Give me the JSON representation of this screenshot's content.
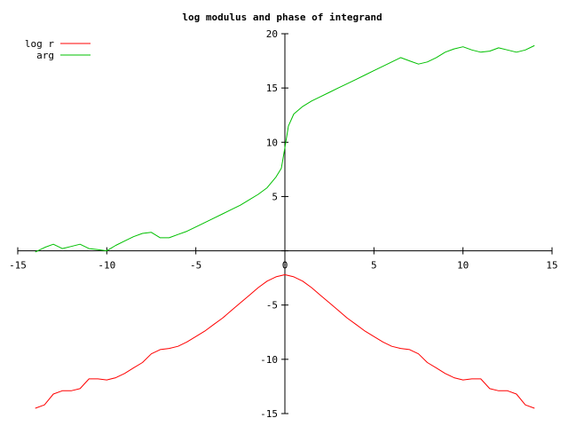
{
  "chart_data": {
    "type": "line",
    "title": "log modulus and phase of integrand",
    "xlabel": "",
    "ylabel": "",
    "xlim": [
      -15,
      15
    ],
    "ylim": [
      -15,
      20
    ],
    "x_ticks": [
      -15,
      -10,
      -5,
      0,
      5,
      10,
      15
    ],
    "y_ticks": [
      -15,
      -10,
      -5,
      0,
      5,
      10,
      15,
      20
    ],
    "x_tick_labels": [
      "-15",
      "-10",
      "-5",
      "0",
      "5",
      "10",
      "15"
    ],
    "y_tick_labels": [
      "-15",
      "-10",
      "-5",
      "0",
      "5",
      "10",
      "15",
      "20"
    ],
    "grid": false,
    "legend_position": "top-left",
    "series": [
      {
        "name": "log r",
        "color": "#ff0000",
        "x": [
          -14,
          -13.5,
          -13,
          -12.5,
          -12,
          -11.5,
          -11,
          -10.5,
          -10,
          -9.5,
          -9,
          -8.5,
          -8,
          -7.5,
          -7,
          -6.5,
          -6,
          -5.5,
          -5,
          -4.5,
          -4,
          -3.5,
          -3,
          -2.5,
          -2,
          -1.5,
          -1,
          -0.5,
          0,
          0.5,
          1,
          1.5,
          2,
          2.5,
          3,
          3.5,
          4,
          4.5,
          5,
          5.5,
          6,
          6.5,
          7,
          7.5,
          8,
          8.5,
          9,
          9.5,
          10,
          10.5,
          11,
          11.5,
          12,
          12.5,
          13,
          13.5,
          14
        ],
        "values": [
          -14.5,
          -14.2,
          -13.2,
          -12.9,
          -12.9,
          -12.7,
          -11.8,
          -11.8,
          -11.9,
          -11.7,
          -11.3,
          -10.8,
          -10.3,
          -9.5,
          -9.1,
          -9.0,
          -8.8,
          -8.4,
          -7.9,
          -7.4,
          -6.8,
          -6.2,
          -5.5,
          -4.8,
          -4.1,
          -3.4,
          -2.8,
          -2.4,
          -2.2,
          -2.4,
          -2.8,
          -3.4,
          -4.1,
          -4.8,
          -5.5,
          -6.2,
          -6.8,
          -7.4,
          -7.9,
          -8.4,
          -8.8,
          -9.0,
          -9.1,
          -9.5,
          -10.3,
          -10.8,
          -11.3,
          -11.7,
          -11.9,
          -11.8,
          -11.8,
          -12.7,
          -12.9,
          -12.9,
          -13.2,
          -14.2,
          -14.5
        ]
      },
      {
        "name": "arg",
        "color": "#00c000",
        "x": [
          -14,
          -13.5,
          -13,
          -12.5,
          -12,
          -11.5,
          -11,
          -10.5,
          -10,
          -9.5,
          -9,
          -8.5,
          -8,
          -7.5,
          -7,
          -6.5,
          -6,
          -5.5,
          -5,
          -4.5,
          -4,
          -3.5,
          -3,
          -2.5,
          -2,
          -1.5,
          -1,
          -0.5,
          -0.2,
          0,
          0.2,
          0.5,
          1,
          1.5,
          2,
          2.5,
          3,
          3.5,
          4,
          4.5,
          5,
          5.5,
          6,
          6.5,
          7,
          7.5,
          8,
          8.5,
          9,
          9.5,
          10,
          10.5,
          11,
          11.5,
          12,
          12.5,
          13,
          13.5,
          14
        ],
        "values": [
          -0.1,
          0.3,
          0.6,
          0.2,
          0.4,
          0.6,
          0.2,
          0.1,
          0.0,
          0.5,
          0.9,
          1.3,
          1.6,
          1.7,
          1.2,
          1.2,
          1.5,
          1.8,
          2.2,
          2.6,
          3.0,
          3.4,
          3.8,
          4.2,
          4.7,
          5.2,
          5.8,
          6.8,
          7.6,
          9.5,
          11.5,
          12.6,
          13.3,
          13.8,
          14.2,
          14.6,
          15.0,
          15.4,
          15.8,
          16.2,
          16.6,
          17.0,
          17.4,
          17.8,
          17.5,
          17.2,
          17.4,
          17.8,
          18.3,
          18.6,
          18.8,
          18.5,
          18.3,
          18.4,
          18.7,
          18.5,
          18.3,
          18.5,
          18.9
        ]
      }
    ]
  }
}
